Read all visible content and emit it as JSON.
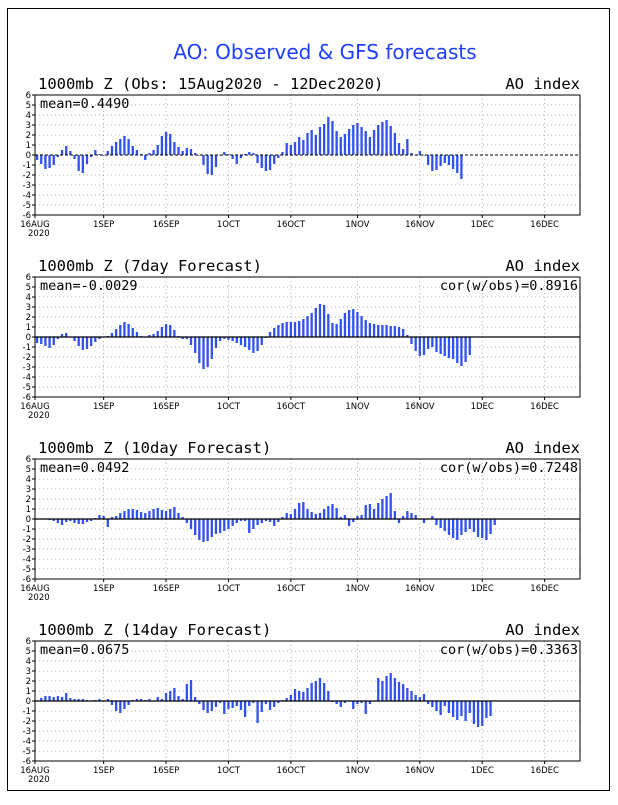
{
  "title": "AO: Observed & GFS forecasts",
  "colors": {
    "bar": "#3050f0",
    "title": "#1f3fff",
    "grid": "#999999",
    "axis": "#000000"
  },
  "chart_data": [
    {
      "type": "bar",
      "title": "1000mb Z (Obs: 15Aug2020 - 12Dec2020)",
      "index_label": "AO index",
      "mean_label": "mean=0.4490",
      "cor_label": "",
      "x_start": "16AUG",
      "year_label": "2020",
      "x_ticks": [
        "16AUG",
        "1SEP",
        "16SEP",
        "1OCT",
        "16OCT",
        "1NOV",
        "16NOV",
        "1DEC",
        "16DEC"
      ],
      "y_ticks": [
        6,
        5,
        4,
        3,
        2,
        1,
        0,
        -1,
        -2,
        -3,
        -4,
        -5,
        -6
      ],
      "ylim": [
        -6,
        6
      ],
      "grid": true,
      "dashed_zero": true,
      "values": [
        -0.5,
        -0.9,
        -1.4,
        -1.3,
        -1.0,
        -0.2,
        0.5,
        0.9,
        0.4,
        -0.4,
        -1.6,
        -1.8,
        -0.9,
        -0.2,
        0.5,
        0.1,
        0.0,
        0.4,
        0.9,
        1.3,
        1.6,
        1.9,
        1.6,
        0.9,
        0.5,
        0.1,
        -0.5,
        0.2,
        0.5,
        1.0,
        1.9,
        2.3,
        2.1,
        1.3,
        0.8,
        0.4,
        0.7,
        0.6,
        0.2,
        0.0,
        -1.0,
        -1.9,
        -2.0,
        -1.2,
        0.0,
        0.3,
        0.1,
        -0.4,
        -0.9,
        -0.3,
        0.1,
        0.3,
        0.2,
        -0.8,
        -1.3,
        -1.6,
        -1.5,
        -0.9,
        -0.3,
        0.3,
        1.2,
        1.0,
        1.3,
        1.8,
        1.5,
        2.2,
        2.5,
        2.0,
        2.8,
        3.1,
        3.8,
        3.4,
        2.4,
        1.8,
        2.1,
        2.6,
        3.0,
        3.2,
        2.8,
        2.4,
        1.8,
        2.5,
        3.0,
        3.3,
        3.5,
        2.9,
        2.2,
        1.2,
        0.6,
        1.6,
        0.2,
        0.0,
        0.4,
        0.0,
        -1.0,
        -1.6,
        -1.5,
        -1.1,
        -0.8,
        -1.0,
        -1.4,
        -1.8,
        -2.4
      ]
    },
    {
      "type": "bar",
      "title": "1000mb Z (7day Forecast)",
      "index_label": "AO index",
      "mean_label": "mean=-0.0029",
      "cor_label": "cor(w/obs)=0.8916",
      "x_start": "16AUG",
      "year_label": "2020",
      "x_ticks": [
        "16AUG",
        "1SEP",
        "16SEP",
        "1OCT",
        "16OCT",
        "1NOV",
        "16NOV",
        "1DEC",
        "16DEC"
      ],
      "y_ticks": [
        6,
        5,
        4,
        3,
        2,
        1,
        0,
        -1,
        -2,
        -3,
        -4,
        -5,
        -6
      ],
      "ylim": [
        -6,
        6
      ],
      "grid": true,
      "dashed_zero": false,
      "values": [
        -0.6,
        -0.7,
        -0.9,
        -1.1,
        -0.8,
        -0.2,
        0.3,
        0.4,
        0.0,
        -0.4,
        -0.9,
        -1.3,
        -1.2,
        -0.9,
        -0.5,
        -0.2,
        0.0,
        0.1,
        0.4,
        0.8,
        1.2,
        1.5,
        1.3,
        0.9,
        0.5,
        0.1,
        0.0,
        0.2,
        0.3,
        0.6,
        1.0,
        1.3,
        1.2,
        0.7,
        0.1,
        -0.2,
        -0.2,
        -0.8,
        -1.6,
        -2.6,
        -3.2,
        -3.0,
        -2.2,
        -1.1,
        -0.4,
        -0.2,
        -0.3,
        -0.4,
        -0.6,
        -0.8,
        -1.0,
        -1.3,
        -1.6,
        -1.4,
        -0.8,
        -0.1,
        0.5,
        0.9,
        1.2,
        1.4,
        1.5,
        1.5,
        1.5,
        1.6,
        1.8,
        2.1,
        2.4,
        2.9,
        3.3,
        3.2,
        2.3,
        1.4,
        1.3,
        1.8,
        2.4,
        2.7,
        2.8,
        2.5,
        2.1,
        1.7,
        1.4,
        1.3,
        1.2,
        1.2,
        1.2,
        1.1,
        1.1,
        1.0,
        0.8,
        0.2,
        -0.7,
        -1.4,
        -1.9,
        -1.8,
        -1.2,
        -1.0,
        -1.5,
        -1.7,
        -1.9,
        -2.1,
        -2.2,
        -2.6,
        -2.9,
        -2.5,
        -1.8
      ]
    },
    {
      "type": "bar",
      "title": "1000mb Z (10day Forecast)",
      "index_label": "AO index",
      "mean_label": "mean=0.0492",
      "cor_label": "cor(w/obs)=0.7248",
      "x_start": "16AUG",
      "year_label": "2020",
      "x_ticks": [
        "16AUG",
        "1SEP",
        "16SEP",
        "1OCT",
        "16OCT",
        "1NOV",
        "16NOV",
        "1DEC",
        "16DEC"
      ],
      "y_ticks": [
        6,
        5,
        4,
        3,
        2,
        1,
        0,
        -1,
        -2,
        -3,
        -4,
        -5,
        -6
      ],
      "ylim": [
        -6,
        6
      ],
      "grid": true,
      "dashed_zero": false,
      "values": [
        0.0,
        0.0,
        0.0,
        -0.1,
        -0.2,
        -0.4,
        -0.6,
        -0.3,
        -0.2,
        -0.4,
        -0.5,
        -0.5,
        -0.3,
        -0.2,
        0.1,
        0.4,
        0.3,
        -0.8,
        0.2,
        0.3,
        0.6,
        0.8,
        1.0,
        1.0,
        0.9,
        0.7,
        0.6,
        0.8,
        1.0,
        1.1,
        0.9,
        0.8,
        1.0,
        1.2,
        0.6,
        0.2,
        -0.4,
        -1.0,
        -1.6,
        -2.1,
        -2.3,
        -2.2,
        -1.8,
        -1.5,
        -1.4,
        -1.2,
        -1.0,
        -0.7,
        -0.4,
        -0.2,
        -0.2,
        -1.4,
        -1.0,
        -0.6,
        -0.4,
        -0.2,
        -0.3,
        -0.7,
        -0.3,
        0.2,
        0.6,
        0.5,
        1.0,
        1.6,
        1.7,
        1.0,
        0.7,
        0.5,
        0.6,
        1.0,
        1.3,
        1.5,
        1.1,
        0.2,
        0.4,
        -0.7,
        -0.3,
        0.3,
        0.4,
        1.4,
        1.5,
        1.0,
        1.6,
        2.0,
        2.3,
        2.6,
        0.8,
        -0.4,
        0.3,
        0.8,
        0.6,
        0.4,
        0.0,
        -0.4,
        0.0,
        0.3,
        -0.6,
        -0.9,
        -1.2,
        -1.6,
        -1.9,
        -2.1,
        -1.6,
        -1.3,
        -1.0,
        -1.3,
        -1.8,
        -1.9,
        -2.1,
        -1.5,
        -0.6
      ]
    },
    {
      "type": "bar",
      "title": "1000mb Z (14day Forecast)",
      "index_label": "AO index",
      "mean_label": "mean=0.0675",
      "cor_label": "cor(w/obs)=0.3363",
      "x_start": "16AUG",
      "year_label": "2020",
      "x_ticks": [
        "16AUG",
        "1SEP",
        "16SEP",
        "1OCT",
        "16OCT",
        "1NOV",
        "16NOV",
        "1DEC",
        "16DEC"
      ],
      "y_ticks": [
        6,
        5,
        4,
        3,
        2,
        1,
        0,
        -1,
        -2,
        -3,
        -4,
        -5,
        -6
      ],
      "ylim": [
        -6,
        6
      ],
      "grid": true,
      "dashed_zero": false,
      "values": [
        0.0,
        0.3,
        0.5,
        0.5,
        0.4,
        0.5,
        0.4,
        0.8,
        0.3,
        0.2,
        0.2,
        0.2,
        0.1,
        0.0,
        0.1,
        0.2,
        0.0,
        0.2,
        -0.4,
        -1.0,
        -1.2,
        -0.8,
        -0.4,
        0.1,
        0.2,
        0.2,
        0.1,
        0.2,
        0.0,
        0.4,
        0.2,
        0.8,
        1.0,
        1.3,
        0.5,
        0.2,
        1.7,
        2.1,
        0.4,
        -0.3,
        -0.9,
        -1.2,
        -1.0,
        -0.6,
        -0.2,
        -1.3,
        -0.8,
        -0.7,
        -0.5,
        -0.9,
        -1.6,
        -0.5,
        -0.2,
        -2.2,
        -1.1,
        -0.3,
        -0.9,
        -0.6,
        -0.2,
        0.1,
        0.3,
        0.6,
        1.2,
        1.0,
        0.9,
        1.3,
        1.8,
        2.0,
        2.3,
        1.8,
        1.0,
        -0.1,
        -0.3,
        -0.6,
        -0.2,
        0.0,
        -0.8,
        -0.3,
        -0.2,
        -1.3,
        -0.3,
        0.0,
        2.3,
        2.0,
        2.5,
        2.8,
        2.3,
        1.9,
        1.7,
        1.3,
        1.0,
        0.6,
        0.4,
        0.7,
        -0.3,
        -0.6,
        -1.0,
        -1.4,
        -0.5,
        -1.2,
        -1.6,
        -1.9,
        -1.5,
        -2.0,
        -1.2,
        -2.3,
        -2.6,
        -2.5,
        -1.7,
        -1.5
      ]
    }
  ]
}
